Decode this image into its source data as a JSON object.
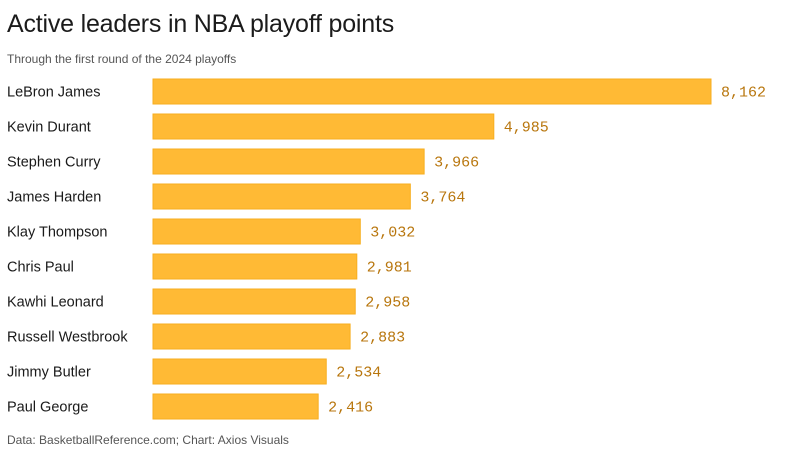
{
  "chart_data": {
    "type": "bar",
    "orientation": "horizontal",
    "title": "Active leaders in NBA playoff points",
    "subtitle": "Through the first round of the 2024 playoffs",
    "source": "Data: BasketballReference.com; Chart: Axios Visuals",
    "xlabel": "",
    "ylabel": "",
    "xlim": [
      0,
      8162
    ],
    "grid": false,
    "legend": "none",
    "bar_color": "#FFBA35",
    "value_color": "#b8760d",
    "categories": [
      "LeBron James",
      "Kevin Durant",
      "Stephen Curry",
      "James Harden",
      "Klay Thompson",
      "Chris Paul",
      "Kawhi Leonard",
      "Russell Westbrook",
      "Jimmy Butler",
      "Paul George"
    ],
    "values": [
      8162,
      4985,
      3966,
      3764,
      3032,
      2981,
      2958,
      2883,
      2534,
      2416
    ],
    "value_labels": [
      "8,162",
      "4,985",
      "3,966",
      "3,764",
      "3,032",
      "2,981",
      "2,958",
      "2,883",
      "2,534",
      "2,416"
    ]
  }
}
